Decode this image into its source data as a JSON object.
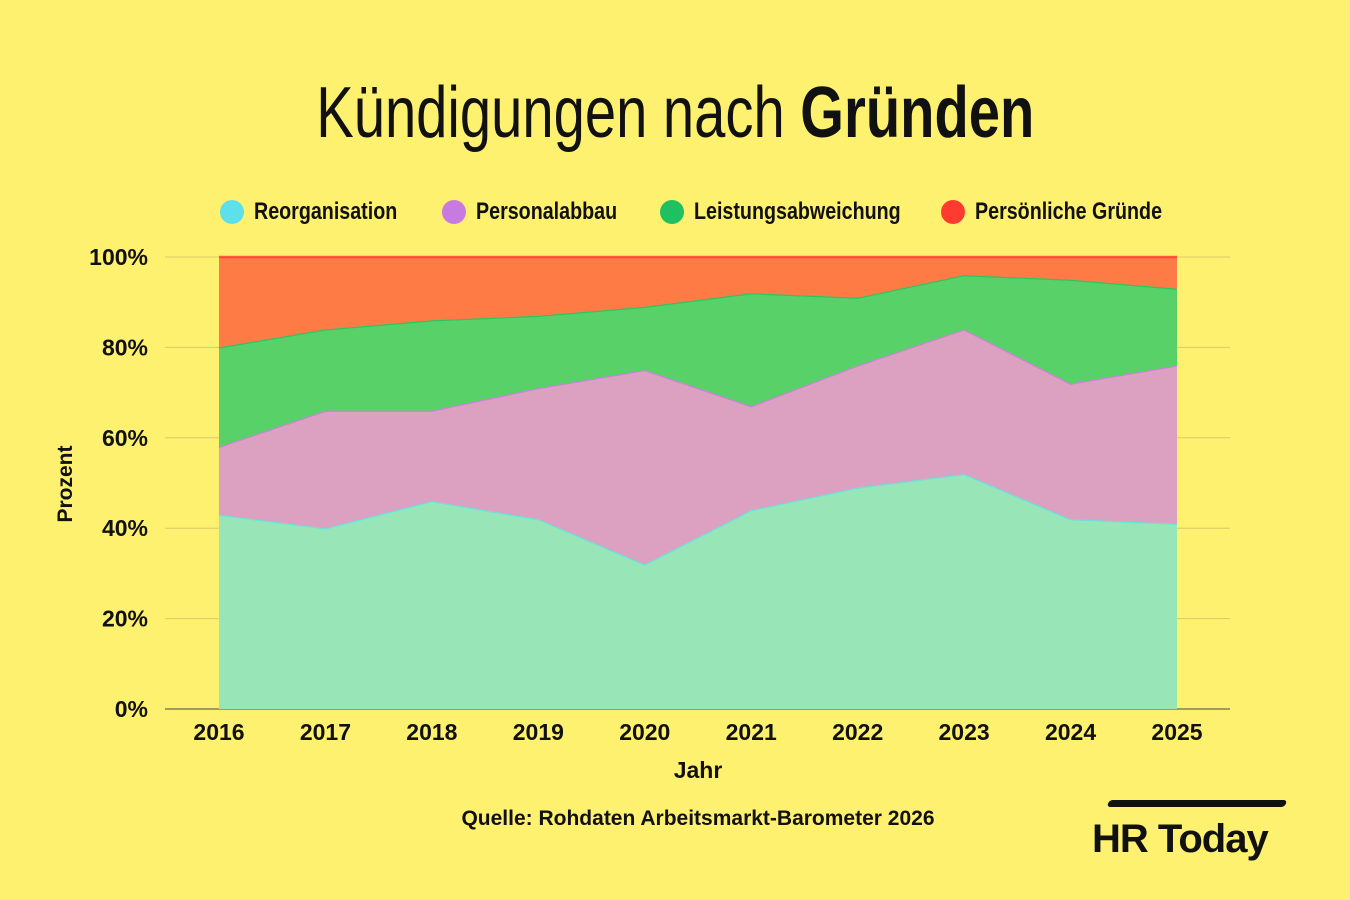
{
  "title_regular": "Kündigungen nach",
  "title_bold": "Gründen",
  "source": "Quelle: Rohdaten Arbeitsmarkt-Barometer 2026",
  "logo": "HR Today",
  "chart_data": {
    "type": "area",
    "stacked": true,
    "xlabel": "Jahr",
    "ylabel": "Prozent",
    "ylim": [
      0,
      100
    ],
    "y_ticks": [
      "0%",
      "20%",
      "40%",
      "60%",
      "80%",
      "100%"
    ],
    "grid": true,
    "legend_position": "top",
    "x": [
      "2016",
      "2017",
      "2018",
      "2019",
      "2020",
      "2021",
      "2022",
      "2023",
      "2024",
      "2025"
    ],
    "series": [
      {
        "name": "Reorganisation",
        "color": "#5ee0ea",
        "fill": "#98e6b8",
        "values": [
          43,
          40,
          46,
          42,
          32,
          44,
          49,
          52,
          42,
          41
        ]
      },
      {
        "name": "Personalabbau",
        "color": "#c77be0",
        "fill": "#dca0c0",
        "values": [
          15,
          26,
          20,
          29,
          43,
          23,
          27,
          32,
          30,
          35
        ]
      },
      {
        "name": "Leistungsabweichung",
        "color": "#1fc060",
        "fill": "#58d168",
        "values": [
          22,
          18,
          20,
          16,
          14,
          25,
          15,
          12,
          23,
          17
        ]
      },
      {
        "name": "Persönliche Gründe",
        "color": "#ff3b30",
        "fill": "#ff7b45",
        "values": [
          20,
          16,
          14,
          13,
          11,
          8,
          9,
          4,
          5,
          7
        ]
      }
    ]
  }
}
